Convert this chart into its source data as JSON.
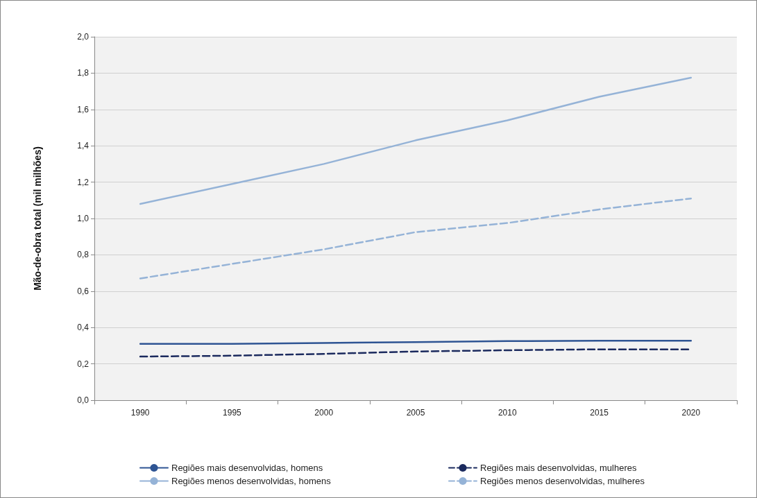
{
  "chart_data": {
    "type": "line",
    "ylabel": "Mão-de-obra total (mil milhões)",
    "categories": [
      "1990",
      "1995",
      "2000",
      "2005",
      "2010",
      "2015",
      "2020"
    ],
    "series": [
      {
        "name": "Regiões mais desenvolvidas, homens",
        "color": "#2e5493",
        "line_style": "solid",
        "values": [
          0.31,
          0.31,
          0.315,
          0.32,
          0.325,
          0.327,
          0.327
        ]
      },
      {
        "name": "Regiões mais desenvolvidas, mulheres",
        "color": "#1b2a5e",
        "line_style": "dashed",
        "values": [
          0.24,
          0.245,
          0.255,
          0.268,
          0.275,
          0.28,
          0.28
        ]
      },
      {
        "name": "Regiões menos desenvolvidas, homens",
        "color": "#95b3d7",
        "line_style": "solid",
        "values": [
          1.08,
          1.19,
          1.3,
          1.43,
          1.54,
          1.67,
          1.775
        ]
      },
      {
        "name": "Regiões menos desenvolvidas, mulheres",
        "color": "#95b3d7",
        "line_style": "dashed",
        "values": [
          0.67,
          0.75,
          0.83,
          0.925,
          0.975,
          1.05,
          1.11
        ]
      }
    ],
    "ylim": [
      0,
      2.0
    ],
    "yticks": [
      {
        "value": 0,
        "label": "0,0"
      },
      {
        "value": 0.2,
        "label": "0,2"
      },
      {
        "value": 0.4,
        "label": "0,4"
      },
      {
        "value": 0.6,
        "label": "0,6"
      },
      {
        "value": 0.8,
        "label": "0,8"
      },
      {
        "value": 1.0,
        "label": "1,0"
      },
      {
        "value": 1.2,
        "label": "1,2"
      },
      {
        "value": 1.4,
        "label": "1,4"
      },
      {
        "value": 1.6,
        "label": "1,6"
      },
      {
        "value": 1.8,
        "label": "1,8"
      },
      {
        "value": 2.0,
        "label": "2,0"
      }
    ],
    "grid": "y",
    "legend": "bottom",
    "marker": "none"
  }
}
